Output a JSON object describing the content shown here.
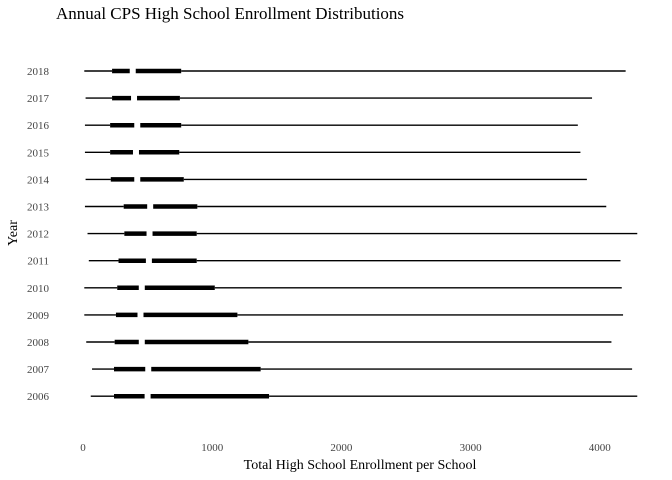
{
  "chart_data": {
    "type": "boxplot",
    "orientation": "horizontal",
    "style": "tufte",
    "title": "Annual CPS High School Enrollment Distributions",
    "xlabel": "Total High School Enrollment per School",
    "ylabel": "Year",
    "xlim": [
      -20,
      4300
    ],
    "x_ticks": [
      0,
      1000,
      2000,
      3000,
      4000
    ],
    "grid": false,
    "colors": {
      "mark": "#000000",
      "tick_text": "#444444",
      "background": "#ffffff"
    },
    "series": [
      {
        "year": "2006",
        "min": 60,
        "q1": 240,
        "median": 500,
        "q3": 1440,
        "max": 4290
      },
      {
        "year": "2007",
        "min": 70,
        "q1": 240,
        "median": 505,
        "q3": 1375,
        "max": 4250
      },
      {
        "year": "2008",
        "min": 25,
        "q1": 245,
        "median": 455,
        "q3": 1280,
        "max": 4090
      },
      {
        "year": "2009",
        "min": 10,
        "q1": 255,
        "median": 445,
        "q3": 1195,
        "max": 4180
      },
      {
        "year": "2010",
        "min": 10,
        "q1": 265,
        "median": 455,
        "q3": 1020,
        "max": 4170
      },
      {
        "year": "2011",
        "min": 45,
        "q1": 275,
        "median": 510,
        "q3": 880,
        "max": 4160
      },
      {
        "year": "2012",
        "min": 35,
        "q1": 320,
        "median": 515,
        "q3": 880,
        "max": 4290
      },
      {
        "year": "2013",
        "min": 15,
        "q1": 315,
        "median": 520,
        "q3": 885,
        "max": 4050
      },
      {
        "year": "2014",
        "min": 20,
        "q1": 215,
        "median": 420,
        "q3": 780,
        "max": 3900
      },
      {
        "year": "2015",
        "min": 15,
        "q1": 210,
        "median": 410,
        "q3": 745,
        "max": 3850
      },
      {
        "year": "2016",
        "min": 15,
        "q1": 210,
        "median": 420,
        "q3": 760,
        "max": 3830
      },
      {
        "year": "2017",
        "min": 20,
        "q1": 225,
        "median": 395,
        "q3": 750,
        "max": 3940
      },
      {
        "year": "2018",
        "min": 10,
        "q1": 225,
        "median": 385,
        "q3": 760,
        "max": 4200
      }
    ]
  }
}
